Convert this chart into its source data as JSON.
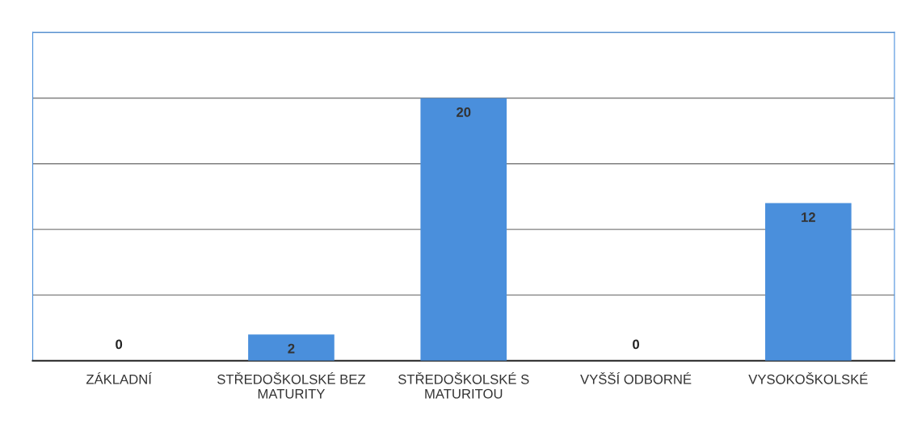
{
  "chart_data": {
    "type": "bar",
    "categories": [
      "ZÁKLADNÍ",
      "STŘEDOŠKOLSKÉ BEZ\nMATURITY",
      "STŘEDOŠKOLSKÉ S\nMATURITOU",
      "VYŠŠÍ ODBORNÉ",
      "VYSOKOŠKOLSKÉ"
    ],
    "values": [
      0,
      2,
      20,
      0,
      12
    ],
    "color": "#4a8fdc",
    "ylim": [
      0,
      25
    ],
    "yticks": [
      {
        "value": 0,
        "label": null
      },
      {
        "value": 5,
        "label": null
      },
      {
        "value": 10,
        "label": null
      },
      {
        "value": 15,
        "label": null
      },
      {
        "value": 20,
        "label": null
      },
      {
        "value": 25,
        "label": null
      }
    ],
    "tick_labels": "x",
    "grid": "y",
    "data_labels": true
  }
}
